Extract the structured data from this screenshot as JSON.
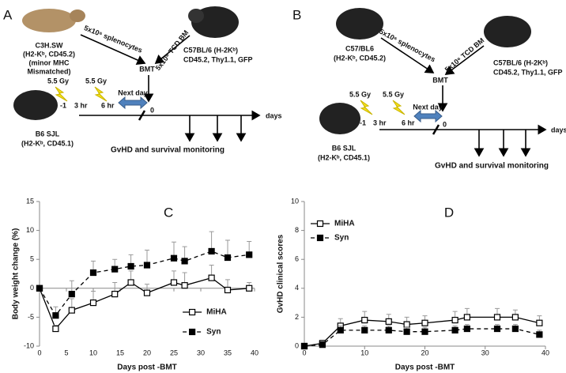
{
  "diagrams": [
    {
      "label": "A",
      "donor_strain": [
        "C3H.SW",
        "(H2-Kᵇ, CD45.2)",
        "(minor MHC",
        "Mismatched)"
      ],
      "splenocytes": "5x10⁶ splenocytes",
      "bm": "5x10⁶ TCD BM",
      "bm_strain": [
        "C57BL/6 (H-2Kᵇ)",
        "CD45.2, Thy1.1, GFP"
      ],
      "bmt": "BMT",
      "dose1": "5.5 Gy",
      "dose2": "5.5 Gy",
      "t1": "-1",
      "t2": "3 hr",
      "t3": "6 hr",
      "next": "Next day",
      "zero": "0",
      "days": "days",
      "recipient": [
        "B6 SJL",
        "(H2-Kᵇ, CD45.1)"
      ],
      "monitor": "GvHD and survival monitoring"
    },
    {
      "label": "B",
      "donor_strain": [
        "C57/BL6",
        "(H2-Kᵇ, CD45.2)"
      ],
      "splenocytes": "5x10⁶ splenocytes",
      "bm": "5x10⁶ TCD BM",
      "bm_strain": [
        "C57BL/6 (H-2Kᵇ)",
        "CD45.2, Thy1.1, GFP"
      ],
      "bmt": "BMT",
      "dose1": "5.5 Gy",
      "dose2": "5.5 Gy",
      "t1": "-1",
      "t2": "3 hr",
      "t3": "6 hr",
      "next": "Next day",
      "zero": "0",
      "days": "days",
      "recipient": [
        "B6 SJL",
        "(H2-Kᵇ, CD45.1)"
      ],
      "monitor": "GvHD and survival monitoring"
    }
  ],
  "chart_data": [
    {
      "type": "line",
      "title": "C",
      "xlabel": "Days post -BMT",
      "ylabel": "Body weight change (%)",
      "xlim": [
        0,
        40
      ],
      "ylim": [
        -10,
        15
      ],
      "xticks": [
        0,
        5,
        10,
        15,
        20,
        25,
        30,
        35,
        40
      ],
      "yticks": [
        -10,
        -5,
        0,
        5,
        10,
        15
      ],
      "legend": "lower right",
      "x": [
        0,
        3,
        6,
        10,
        14,
        17,
        20,
        25,
        27,
        32,
        35,
        39
      ],
      "series": [
        {
          "name": "MiHA",
          "color": "#000000",
          "marker_fill": "#ffffff",
          "line_style": "solid",
          "values": [
            0,
            -7,
            -3.8,
            -2.5,
            -1,
            1,
            -0.8,
            1,
            0.5,
            1.8,
            -0.3,
            0
          ],
          "errors": [
            0,
            0.6,
            2,
            2,
            2,
            2,
            1.5,
            2,
            2.2,
            2.2,
            1.8,
            1
          ]
        },
        {
          "name": "Syn",
          "color": "#000000",
          "marker_fill": "#000000",
          "line_style": "dashed",
          "values": [
            0,
            -4.7,
            -1,
            2.7,
            3.3,
            3.8,
            4,
            5.2,
            4.7,
            6.4,
            5.3,
            5.8
          ],
          "errors": [
            0,
            1.5,
            2.3,
            2,
            1.7,
            2,
            2.6,
            2.8,
            2.5,
            3.4,
            3,
            2.3
          ]
        }
      ]
    },
    {
      "type": "line",
      "title": "D",
      "xlabel": "Days post -BMT",
      "ylabel": "GvHD clinical scores",
      "xlim": [
        0,
        40
      ],
      "ylim": [
        0,
        10
      ],
      "xticks": [
        0,
        10,
        20,
        30,
        40
      ],
      "yticks": [
        0,
        2,
        4,
        6,
        8,
        10
      ],
      "legend": "upper left",
      "x": [
        0,
        3,
        6,
        10,
        14,
        17,
        20,
        25,
        27,
        32,
        35,
        39
      ],
      "series": [
        {
          "name": "MiHA",
          "color": "#000000",
          "marker_fill": "#ffffff",
          "line_style": "solid",
          "values": [
            0,
            0.2,
            1.4,
            1.8,
            1.7,
            1.5,
            1.6,
            1.8,
            2,
            2,
            2,
            1.6
          ],
          "errors": [
            0,
            0.2,
            0.5,
            0.6,
            0.5,
            0.5,
            0.5,
            0.6,
            0.6,
            0.6,
            0.5,
            0.5
          ]
        },
        {
          "name": "Syn",
          "color": "#000000",
          "marker_fill": "#000000",
          "line_style": "dashed",
          "values": [
            0,
            0.1,
            1.1,
            1.1,
            1.1,
            1,
            1,
            1.1,
            1.2,
            1.2,
            1.2,
            0.8
          ],
          "errors": [
            0,
            0.1,
            0.3,
            0.3,
            0.3,
            0.3,
            0.3,
            0.3,
            0.3,
            0.3,
            0.3,
            0.3
          ]
        }
      ]
    }
  ]
}
